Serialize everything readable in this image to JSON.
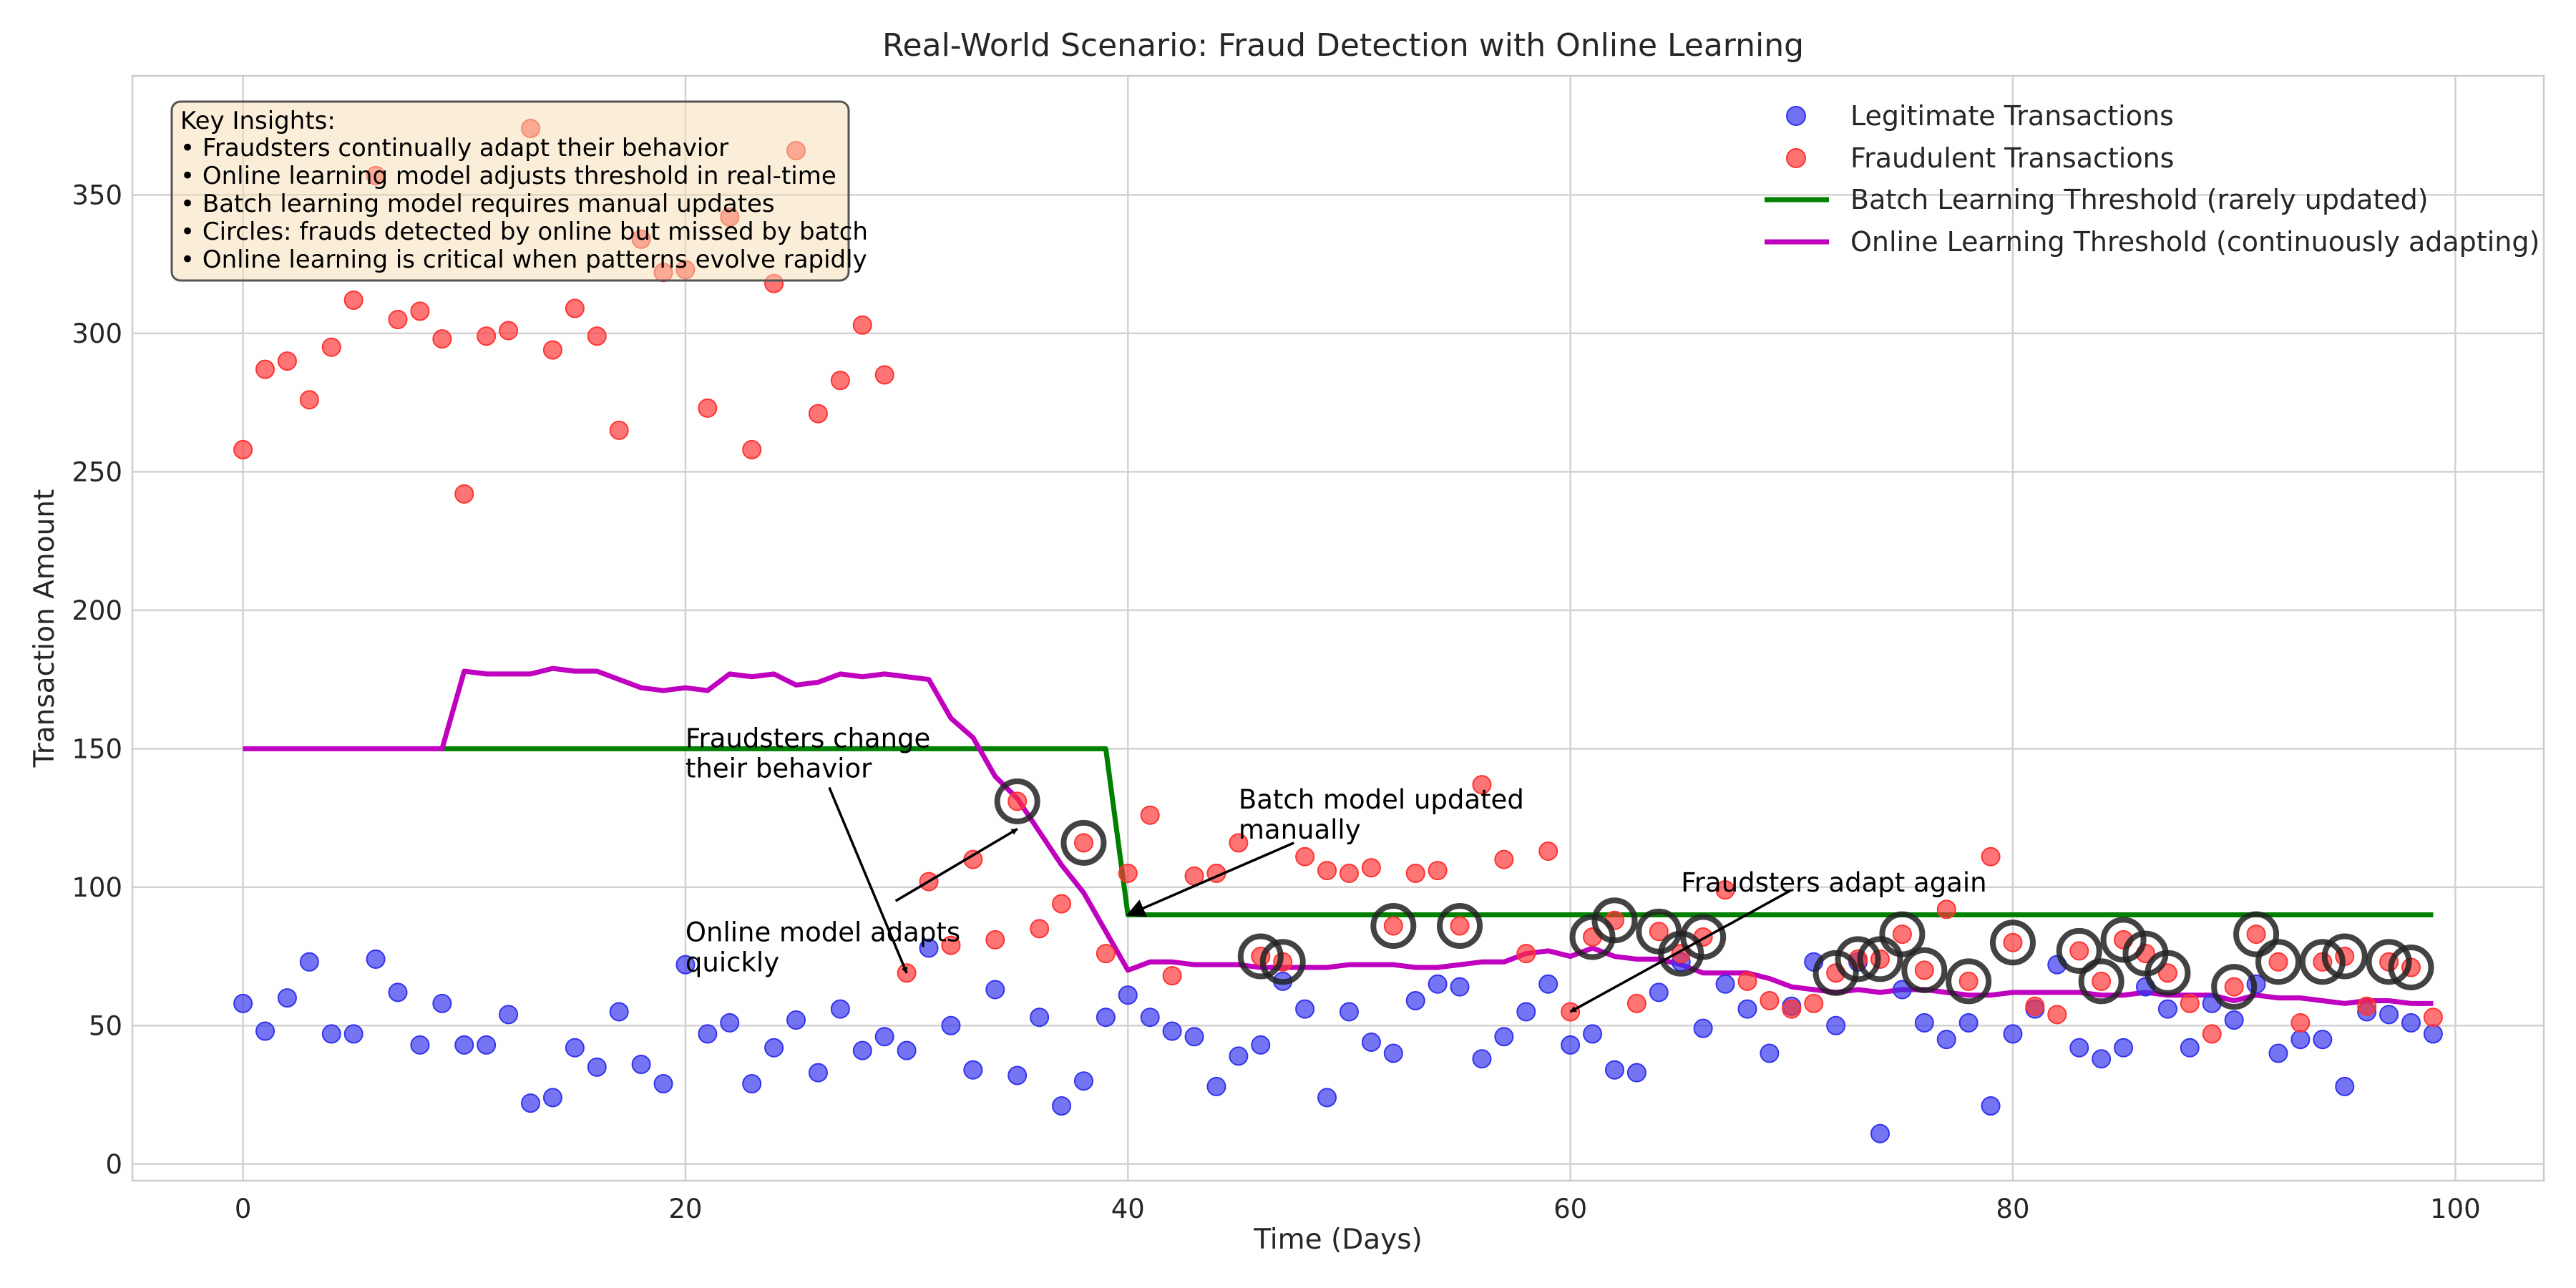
{
  "chart_data": {
    "type": "scatter",
    "title": "Real-World Scenario: Fraud Detection with Online Learning",
    "xlabel": "Time (Days)",
    "ylabel": "Transaction Amount",
    "xlim": [
      -5,
      104
    ],
    "ylim": [
      -6,
      393
    ],
    "xticks": [
      0,
      20,
      40,
      60,
      80,
      100
    ],
    "yticks": [
      0,
      50,
      100,
      150,
      200,
      250,
      300,
      350
    ],
    "grid": true,
    "legend_position": "top-right",
    "colors": {
      "legitimate": "#3333ee",
      "fraudulent": "#ff3333",
      "batch": "#008000",
      "online": "#bf00bf",
      "circle": "#222222"
    },
    "legend": [
      {
        "label": "Legitimate Transactions",
        "kind": "marker",
        "color": "#3333ee"
      },
      {
        "label": "Fraudulent Transactions",
        "kind": "marker",
        "color": "#ff3333"
      },
      {
        "label": "Batch Learning Threshold (rarely updated)",
        "kind": "line",
        "color": "#008000"
      },
      {
        "label": "Online Learning Threshold (continuously adapting)",
        "kind": "line",
        "color": "#bf00bf"
      }
    ],
    "series": [
      {
        "name": "Legitimate Transactions",
        "type": "scatter",
        "points": [
          [
            0,
            58
          ],
          [
            1,
            48
          ],
          [
            2,
            60
          ],
          [
            3,
            73
          ],
          [
            4,
            47
          ],
          [
            5,
            47
          ],
          [
            6,
            74
          ],
          [
            7,
            62
          ],
          [
            8,
            43
          ],
          [
            9,
            58
          ],
          [
            10,
            43
          ],
          [
            11,
            43
          ],
          [
            12,
            54
          ],
          [
            13,
            22
          ],
          [
            14,
            24
          ],
          [
            15,
            42
          ],
          [
            16,
            35
          ],
          [
            17,
            55
          ],
          [
            18,
            36
          ],
          [
            19,
            29
          ],
          [
            20,
            72
          ],
          [
            21,
            47
          ],
          [
            22,
            51
          ],
          [
            23,
            29
          ],
          [
            24,
            42
          ],
          [
            25,
            52
          ],
          [
            26,
            33
          ],
          [
            27,
            56
          ],
          [
            28,
            41
          ],
          [
            29,
            46
          ],
          [
            30,
            41
          ],
          [
            31,
            78
          ],
          [
            32,
            50
          ],
          [
            33,
            34
          ],
          [
            34,
            63
          ],
          [
            35,
            32
          ],
          [
            36,
            53
          ],
          [
            37,
            21
          ],
          [
            38,
            30
          ],
          [
            39,
            53
          ],
          [
            40,
            61
          ],
          [
            41,
            53
          ],
          [
            42,
            48
          ],
          [
            43,
            46
          ],
          [
            44,
            28
          ],
          [
            45,
            39
          ],
          [
            46,
            43
          ],
          [
            47,
            66
          ],
          [
            48,
            56
          ],
          [
            49,
            24
          ],
          [
            50,
            55
          ],
          [
            51,
            44
          ],
          [
            52,
            40
          ],
          [
            53,
            59
          ],
          [
            54,
            65
          ],
          [
            55,
            64
          ],
          [
            56,
            38
          ],
          [
            57,
            46
          ],
          [
            58,
            55
          ],
          [
            59,
            65
          ],
          [
            60,
            43
          ],
          [
            61,
            47
          ],
          [
            62,
            34
          ],
          [
            63,
            33
          ],
          [
            64,
            62
          ],
          [
            65,
            73
          ],
          [
            66,
            49
          ],
          [
            67,
            65
          ],
          [
            68,
            56
          ],
          [
            69,
            40
          ],
          [
            70,
            57
          ],
          [
            71,
            73
          ],
          [
            72,
            50
          ],
          [
            73,
            73
          ],
          [
            74,
            11
          ],
          [
            75,
            63
          ],
          [
            76,
            51
          ],
          [
            77,
            45
          ],
          [
            78,
            51
          ],
          [
            79,
            21
          ],
          [
            80,
            47
          ],
          [
            81,
            56
          ],
          [
            82,
            72
          ],
          [
            83,
            42
          ],
          [
            84,
            38
          ],
          [
            85,
            42
          ],
          [
            86,
            64
          ],
          [
            87,
            56
          ],
          [
            88,
            42
          ],
          [
            89,
            58
          ],
          [
            90,
            52
          ],
          [
            91,
            65
          ],
          [
            92,
            40
          ],
          [
            93,
            45
          ],
          [
            94,
            45
          ],
          [
            95,
            28
          ],
          [
            96,
            55
          ],
          [
            97,
            54
          ],
          [
            98,
            51
          ],
          [
            99,
            47
          ]
        ]
      },
      {
        "name": "Fraudulent Transactions",
        "type": "scatter",
        "points": [
          [
            0,
            258
          ],
          [
            1,
            287
          ],
          [
            2,
            290
          ],
          [
            3,
            276
          ],
          [
            4,
            295
          ],
          [
            5,
            312
          ],
          [
            6,
            357
          ],
          [
            7,
            305
          ],
          [
            8,
            308
          ],
          [
            9,
            298
          ],
          [
            10,
            242
          ],
          [
            11,
            299
          ],
          [
            12,
            301
          ],
          [
            13,
            374
          ],
          [
            14,
            294
          ],
          [
            15,
            309
          ],
          [
            16,
            299
          ],
          [
            17,
            265
          ],
          [
            18,
            334
          ],
          [
            19,
            322
          ],
          [
            20,
            323
          ],
          [
            21,
            273
          ],
          [
            22,
            342
          ],
          [
            23,
            258
          ],
          [
            24,
            318
          ],
          [
            25,
            366
          ],
          [
            26,
            271
          ],
          [
            27,
            283
          ],
          [
            28,
            303
          ],
          [
            29,
            285
          ],
          [
            30,
            69
          ],
          [
            31,
            102
          ],
          [
            32,
            79
          ],
          [
            33,
            110
          ],
          [
            34,
            81
          ],
          [
            35,
            131
          ],
          [
            36,
            85
          ],
          [
            37,
            94
          ],
          [
            38,
            116
          ],
          [
            39,
            76
          ],
          [
            40,
            105
          ],
          [
            41,
            126
          ],
          [
            42,
            68
          ],
          [
            43,
            104
          ],
          [
            44,
            105
          ],
          [
            45,
            116
          ],
          [
            46,
            75
          ],
          [
            47,
            73
          ],
          [
            48,
            111
          ],
          [
            49,
            106
          ],
          [
            50,
            105
          ],
          [
            51,
            107
          ],
          [
            52,
            86
          ],
          [
            53,
            105
          ],
          [
            54,
            106
          ],
          [
            55,
            86
          ],
          [
            56,
            137
          ],
          [
            57,
            110
          ],
          [
            58,
            76
          ],
          [
            59,
            113
          ],
          [
            60,
            55
          ],
          [
            61,
            82
          ],
          [
            62,
            88
          ],
          [
            63,
            58
          ],
          [
            64,
            84
          ],
          [
            65,
            76
          ],
          [
            66,
            82
          ],
          [
            67,
            99
          ],
          [
            68,
            66
          ],
          [
            69,
            59
          ],
          [
            70,
            56
          ],
          [
            71,
            58
          ],
          [
            72,
            69
          ],
          [
            73,
            74
          ],
          [
            74,
            74
          ],
          [
            75,
            83
          ],
          [
            76,
            70
          ],
          [
            77,
            92
          ],
          [
            78,
            66
          ],
          [
            79,
            111
          ],
          [
            80,
            80
          ],
          [
            81,
            57
          ],
          [
            82,
            54
          ],
          [
            83,
            77
          ],
          [
            84,
            66
          ],
          [
            85,
            81
          ],
          [
            86,
            76
          ],
          [
            87,
            69
          ],
          [
            88,
            58
          ],
          [
            89,
            47
          ],
          [
            90,
            64
          ],
          [
            91,
            83
          ],
          [
            92,
            73
          ],
          [
            93,
            51
          ],
          [
            94,
            73
          ],
          [
            95,
            75
          ],
          [
            96,
            57
          ],
          [
            97,
            73
          ],
          [
            98,
            71
          ],
          [
            99,
            53
          ]
        ]
      },
      {
        "name": "Batch Learning Threshold (rarely updated)",
        "type": "line",
        "x": [
          9,
          39,
          40,
          99
        ],
        "y": [
          150,
          150,
          90,
          90
        ]
      },
      {
        "name": "Online Learning Threshold (continuously adapting)",
        "type": "line",
        "x": [
          0,
          1,
          2,
          3,
          4,
          5,
          6,
          7,
          8,
          9,
          10,
          11,
          12,
          13,
          14,
          15,
          16,
          17,
          18,
          19,
          20,
          21,
          22,
          23,
          24,
          25,
          26,
          27,
          28,
          29,
          30,
          31,
          32,
          33,
          34,
          35,
          36,
          37,
          38,
          39,
          40,
          41,
          42,
          43,
          44,
          45,
          46,
          47,
          48,
          49,
          50,
          51,
          52,
          53,
          54,
          55,
          56,
          57,
          58,
          59,
          60,
          61,
          62,
          63,
          64,
          65,
          66,
          67,
          68,
          69,
          70,
          71,
          72,
          73,
          74,
          75,
          76,
          77,
          78,
          79,
          80,
          81,
          82,
          83,
          84,
          85,
          86,
          87,
          88,
          89,
          90,
          91,
          92,
          93,
          94,
          95,
          96,
          97,
          98,
          99
        ],
        "y": [
          150,
          150,
          150,
          150,
          150,
          150,
          150,
          150,
          150,
          150,
          178,
          177,
          177,
          177,
          179,
          178,
          178,
          175,
          172,
          171,
          172,
          171,
          177,
          176,
          177,
          173,
          174,
          177,
          176,
          177,
          176,
          175,
          161,
          154,
          140,
          132,
          120,
          108,
          98,
          84,
          70,
          73,
          73,
          72,
          72,
          72,
          71,
          71,
          71,
          71,
          72,
          72,
          72,
          71,
          71,
          72,
          73,
          73,
          76,
          77,
          75,
          78,
          75,
          74,
          74,
          72,
          69,
          69,
          69,
          67,
          64,
          63,
          62,
          63,
          62,
          63,
          63,
          62,
          61,
          61,
          62,
          62,
          62,
          62,
          61,
          61,
          62,
          61,
          61,
          61,
          59,
          61,
          60,
          60,
          59,
          58,
          59,
          59,
          58,
          58
        ]
      }
    ],
    "circled_frauds": [
      [
        35,
        131
      ],
      [
        38,
        116
      ],
      [
        46,
        75
      ],
      [
        47,
        73
      ],
      [
        52,
        86
      ],
      [
        55,
        86
      ],
      [
        61,
        82
      ],
      [
        62,
        88
      ],
      [
        64,
        84
      ],
      [
        65,
        76
      ],
      [
        66,
        82
      ],
      [
        72,
        69
      ],
      [
        73,
        74
      ],
      [
        74,
        74
      ],
      [
        75,
        83
      ],
      [
        76,
        70
      ],
      [
        78,
        66
      ],
      [
        80,
        80
      ],
      [
        83,
        77
      ],
      [
        84,
        66
      ],
      [
        85,
        81
      ],
      [
        86,
        76
      ],
      [
        87,
        69
      ],
      [
        90,
        64
      ],
      [
        91,
        83
      ],
      [
        92,
        73
      ],
      [
        94,
        73
      ],
      [
        95,
        75
      ],
      [
        97,
        73
      ],
      [
        98,
        71
      ]
    ],
    "annotations": [
      {
        "lines": [
          "Fraudsters change",
          "their behavior"
        ],
        "text_at": [
          20,
          153
        ],
        "arrow_from": [
          26.5,
          136
        ],
        "arrow_to": [
          30,
          69
        ]
      },
      {
        "lines": [
          "Online model adapts",
          "quickly"
        ],
        "text_at": [
          20,
          83
        ],
        "arrow_from": [
          29.5,
          95
        ],
        "arrow_to": [
          35,
          121
        ]
      },
      {
        "lines": [
          "Batch model updated",
          "manually"
        ],
        "text_at": [
          45,
          131
        ],
        "arrow_from": [
          47.5,
          116
        ],
        "arrow_to": [
          40,
          90
        ]
      },
      {
        "lines": [
          "Fraudsters adapt again"
        ],
        "text_at": [
          65,
          101
        ],
        "arrow_from": [
          70,
          99
        ],
        "arrow_to": [
          60,
          55
        ]
      }
    ],
    "insights": {
      "heading": "Key Insights:",
      "items": [
        "• Fraudsters continually adapt their behavior",
        "• Online learning model adjusts threshold in real-time",
        "• Batch learning model requires manual updates",
        "• Circles: frauds detected by online but missed by batch",
        "• Online learning is critical when patterns evolve rapidly"
      ]
    }
  }
}
